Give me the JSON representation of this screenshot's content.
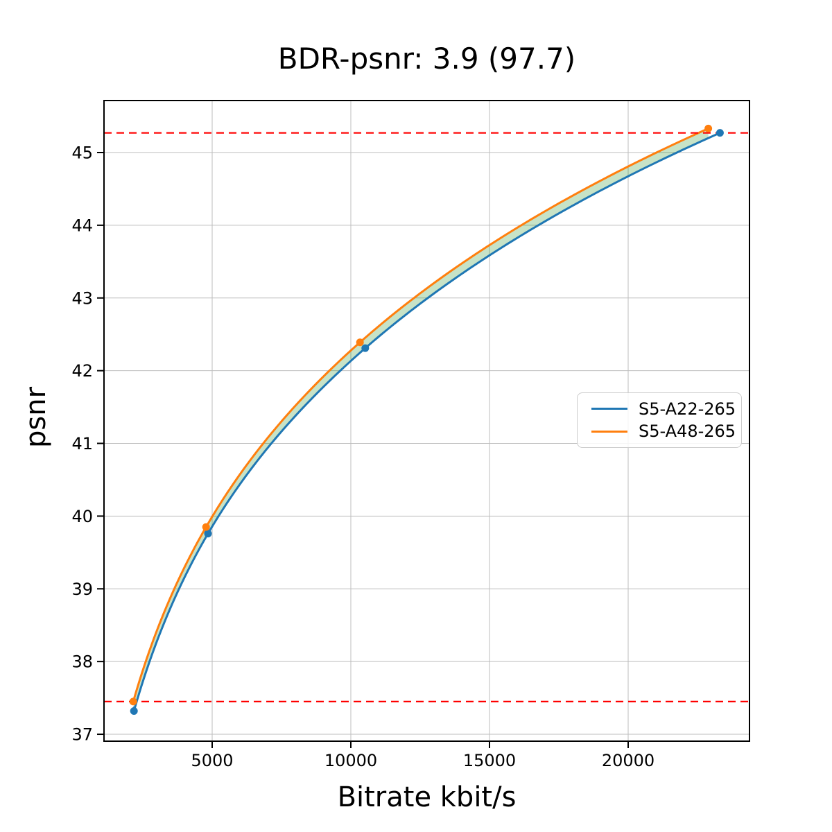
{
  "figure": {
    "title": "BDR-psnr: 3.9 (97.7)",
    "xlabel": "Bitrate kbit/s",
    "ylabel": "psnr"
  },
  "chart_data": {
    "type": "line",
    "title": "BDR-psnr: 3.9 (97.7)",
    "xlabel": "Bitrate kbit/s",
    "ylabel": "psnr",
    "x_scale": "linear",
    "xlim": [
      1100,
      24375
    ],
    "ylim": [
      36.905,
      45.715
    ],
    "xticks": [
      5000,
      10000,
      15000,
      20000
    ],
    "yticks": [
      37,
      38,
      39,
      40,
      41,
      42,
      43,
      44,
      45
    ],
    "grid": true,
    "grid_color": "#bdbdbd",
    "axes_color": "#000000",
    "interpolation": "monotone-cubic-on-log10-bitrate",
    "series": [
      {
        "name": "S5-A22-265",
        "color": "#1f77b4",
        "marker": "circle",
        "points": [
          [
            2180,
            37.32
          ],
          [
            4850,
            39.76
          ],
          [
            10520,
            42.31
          ],
          [
            23310,
            45.27
          ]
        ]
      },
      {
        "name": "S5-A48-265",
        "color": "#ff7f0e",
        "marker": "circle",
        "points": [
          [
            2155,
            37.45
          ],
          [
            4780,
            39.85
          ],
          [
            10330,
            42.39
          ],
          [
            22890,
            45.33
          ]
        ]
      }
    ],
    "hlines": [
      {
        "y": 45.27,
        "color": "#ff0000",
        "style": "dashed",
        "role": "upper-overlap-bound"
      },
      {
        "y": 37.45,
        "color": "#ff0000",
        "style": "dashed",
        "role": "lower-overlap-bound"
      }
    ],
    "connectors": [
      {
        "x": 2180,
        "y1": 37.45,
        "y2": 37.32,
        "color": "#1f77b4",
        "style": "dotted"
      }
    ],
    "fill_between": {
      "color": "#008000",
      "opacity": 0.22,
      "x_range": [
        2180,
        22890
      ]
    },
    "legend": {
      "position": "right-center",
      "entries": [
        "S5-A22-265",
        "S5-A48-265"
      ]
    }
  }
}
